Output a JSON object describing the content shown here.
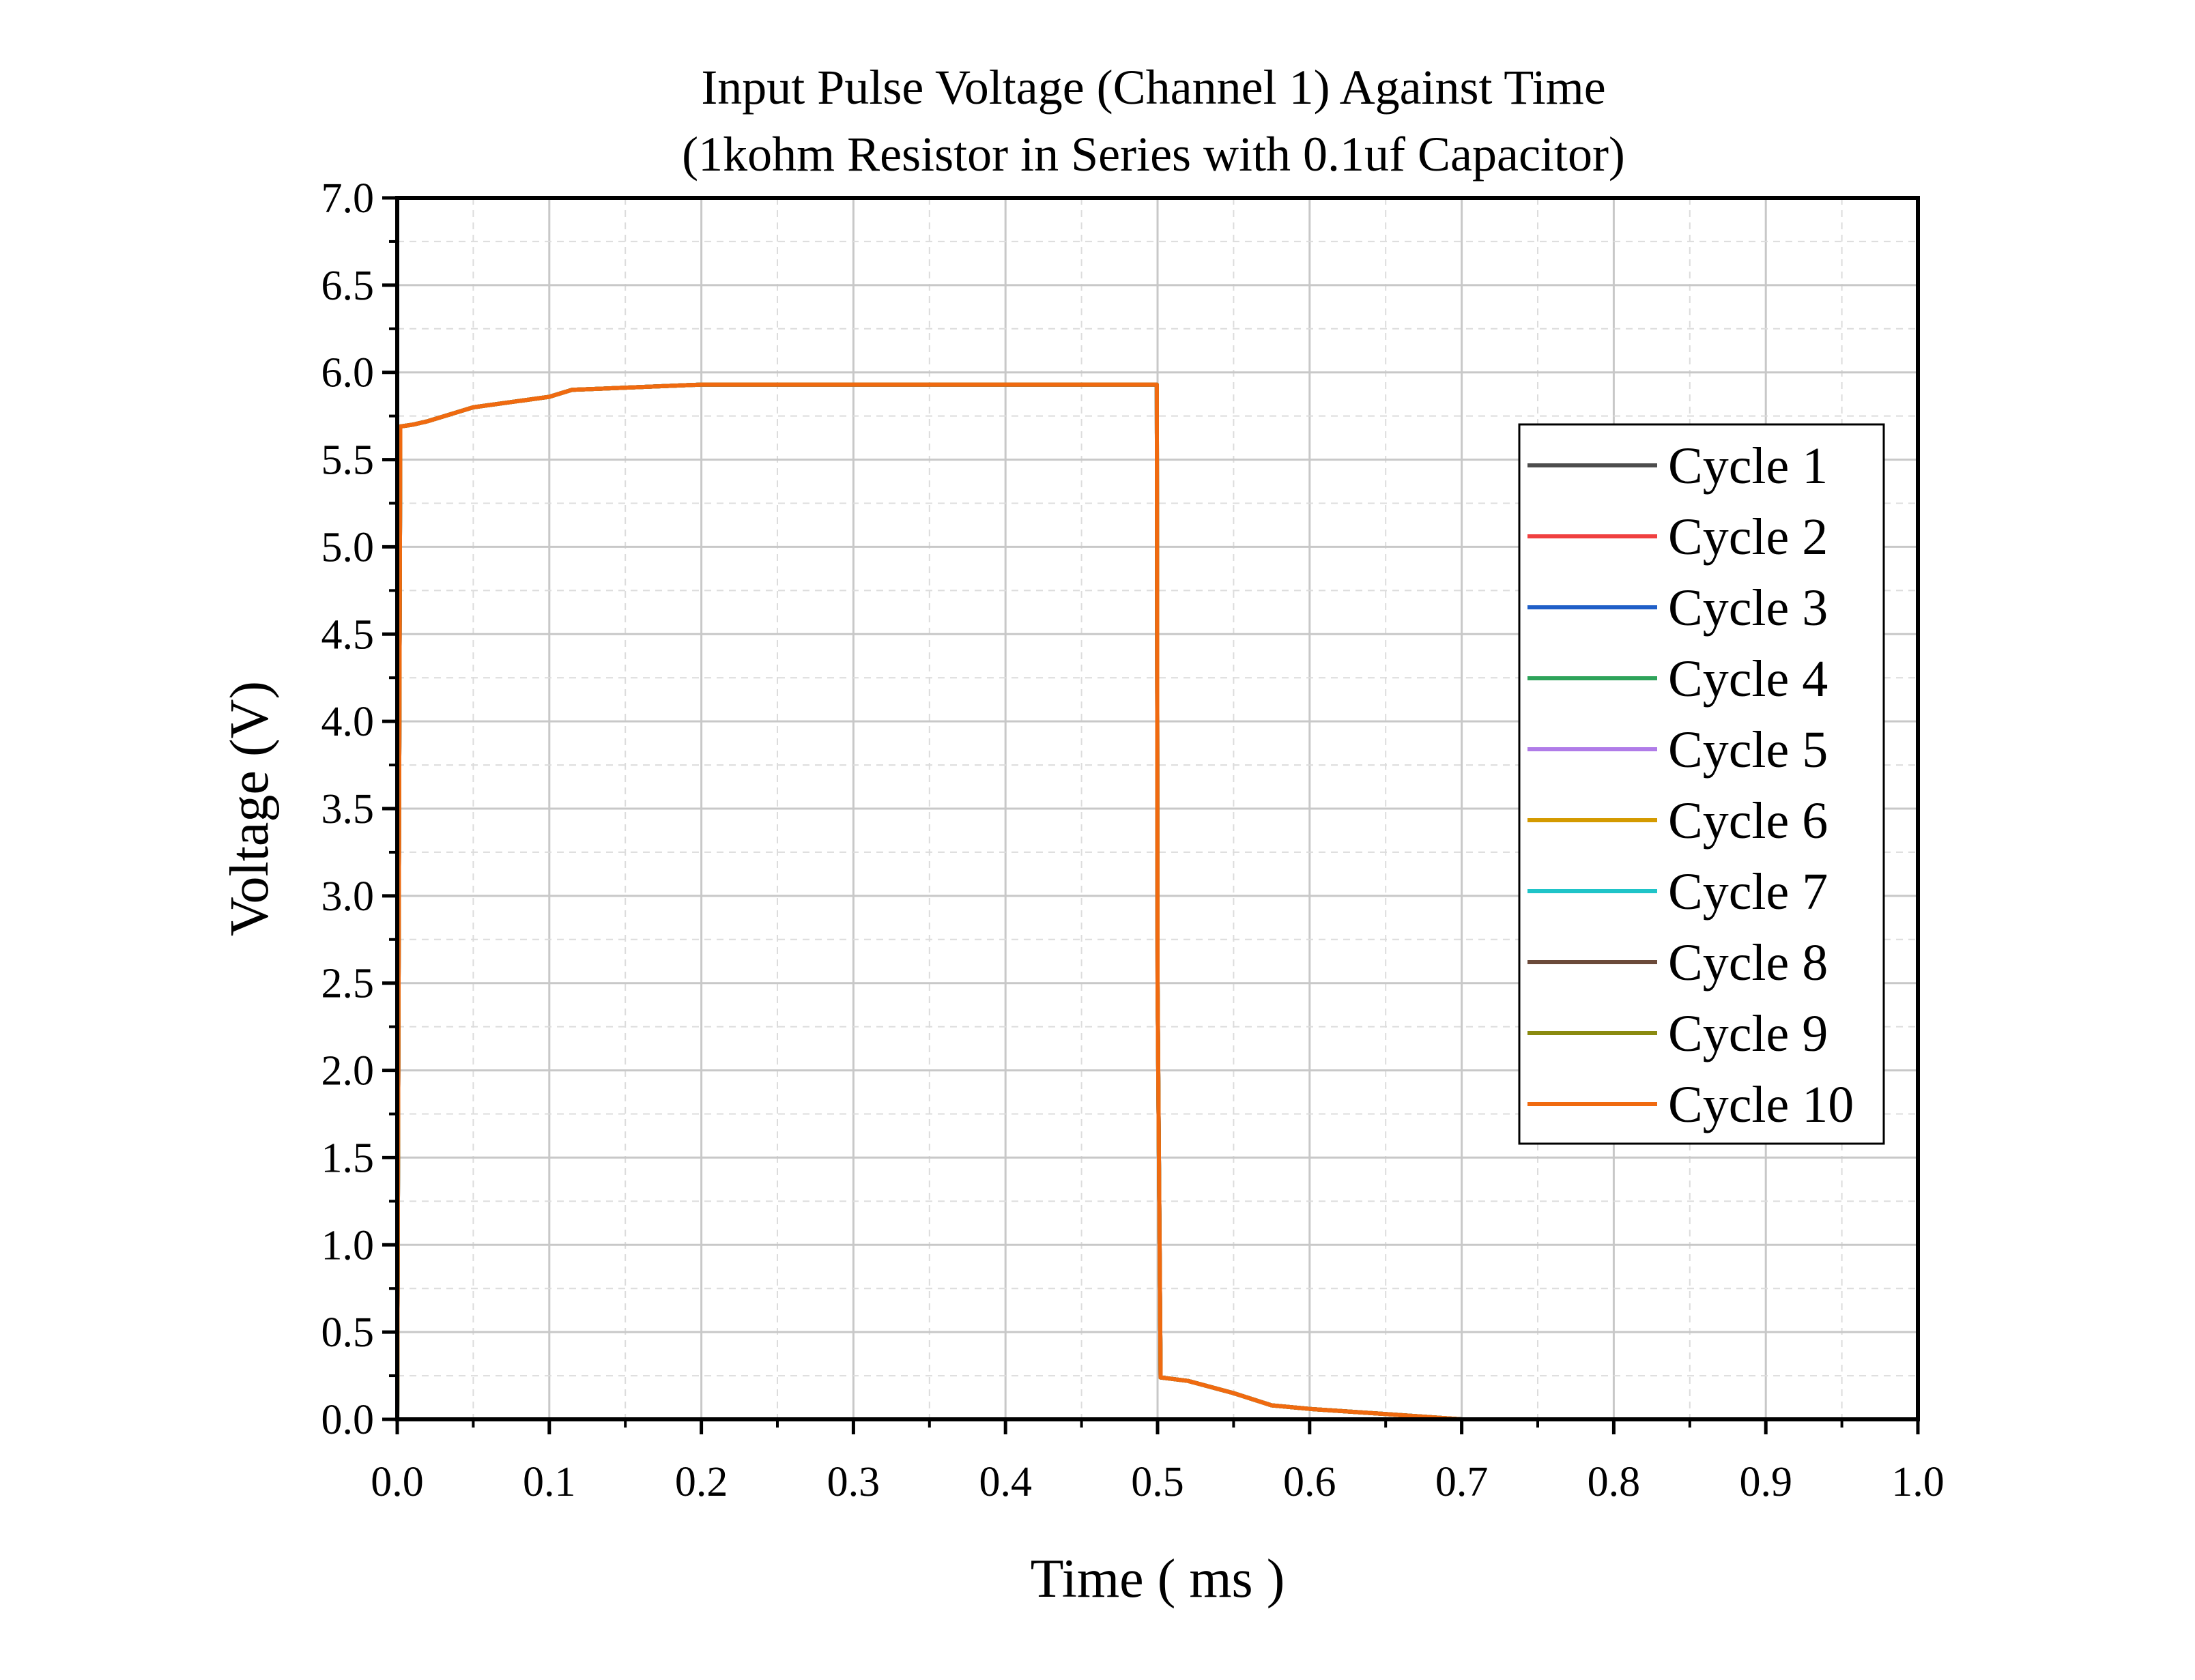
{
  "chart_data": {
    "type": "line",
    "title": "Input Pulse Voltage (Channel 1) Against Time",
    "subtitle": "(1kohm Resistor in Series with 0.1uf Capacitor)",
    "xlabel": "Time ( ms )",
    "ylabel": "Voltage (V)",
    "xlim": [
      0.0,
      1.0
    ],
    "ylim": [
      0.0,
      7.0
    ],
    "x_ticks": [
      "0.0",
      "0.1",
      "0.2",
      "0.3",
      "0.4",
      "0.5",
      "0.6",
      "0.7",
      "0.8",
      "0.9",
      "1.0"
    ],
    "y_ticks": [
      "0.0",
      "0.5",
      "1.0",
      "1.5",
      "2.0",
      "2.5",
      "3.0",
      "3.5",
      "4.0",
      "4.5",
      "5.0",
      "5.5",
      "6.0",
      "6.5",
      "7.0"
    ],
    "grid": true,
    "legend_position": "right",
    "x": [
      0.0,
      0.002,
      0.01,
      0.02,
      0.05,
      0.1,
      0.115,
      0.2,
      0.3,
      0.4,
      0.4995,
      0.5,
      0.502,
      0.52,
      0.55,
      0.575,
      0.6,
      0.65,
      0.7,
      0.8,
      0.9,
      1.0
    ],
    "series": [
      {
        "name": "Cycle 1",
        "color": "#4d4d4d",
        "values": [
          0.0,
          5.69,
          5.7,
          5.72,
          5.8,
          5.86,
          5.9,
          5.93,
          5.93,
          5.93,
          5.93,
          2.5,
          0.24,
          0.22,
          0.15,
          0.08,
          0.06,
          0.03,
          0.0,
          0.0,
          0.0,
          0.0
        ]
      },
      {
        "name": "Cycle 2",
        "color": "#f04040",
        "values": [
          0.0,
          5.69,
          5.7,
          5.72,
          5.8,
          5.86,
          5.9,
          5.93,
          5.93,
          5.93,
          5.93,
          2.5,
          0.24,
          0.22,
          0.15,
          0.08,
          0.06,
          0.03,
          0.0,
          0.0,
          0.0,
          0.0
        ]
      },
      {
        "name": "Cycle 3",
        "color": "#1f5fc8",
        "values": [
          0.0,
          5.69,
          5.7,
          5.72,
          5.8,
          5.86,
          5.9,
          5.93,
          5.93,
          5.93,
          5.93,
          2.5,
          0.24,
          0.22,
          0.15,
          0.08,
          0.06,
          0.03,
          0.0,
          0.0,
          0.0,
          0.0
        ]
      },
      {
        "name": "Cycle 4",
        "color": "#2ea35a",
        "values": [
          0.0,
          5.69,
          5.7,
          5.72,
          5.8,
          5.86,
          5.9,
          5.93,
          5.93,
          5.93,
          5.93,
          2.5,
          0.24,
          0.22,
          0.15,
          0.08,
          0.06,
          0.03,
          0.0,
          0.0,
          0.0,
          0.0
        ]
      },
      {
        "name": "Cycle 5",
        "color": "#b07ce8",
        "values": [
          0.0,
          5.69,
          5.7,
          5.72,
          5.8,
          5.86,
          5.9,
          5.93,
          5.93,
          5.93,
          5.93,
          2.5,
          0.24,
          0.22,
          0.15,
          0.08,
          0.06,
          0.03,
          0.0,
          0.0,
          0.0,
          0.0
        ]
      },
      {
        "name": "Cycle 6",
        "color": "#d49a00",
        "values": [
          0.0,
          5.69,
          5.7,
          5.72,
          5.8,
          5.86,
          5.9,
          5.93,
          5.93,
          5.93,
          5.93,
          2.5,
          0.24,
          0.22,
          0.15,
          0.08,
          0.06,
          0.03,
          0.0,
          0.0,
          0.0,
          0.0
        ]
      },
      {
        "name": "Cycle 7",
        "color": "#1fc4c8",
        "values": [
          0.0,
          5.69,
          5.7,
          5.72,
          5.8,
          5.86,
          5.9,
          5.93,
          5.93,
          5.93,
          5.93,
          2.5,
          0.24,
          0.22,
          0.15,
          0.08,
          0.06,
          0.03,
          0.0,
          0.0,
          0.0,
          0.0
        ]
      },
      {
        "name": "Cycle 8",
        "color": "#6b4a3a",
        "values": [
          0.0,
          5.69,
          5.7,
          5.72,
          5.8,
          5.86,
          5.9,
          5.93,
          5.93,
          5.93,
          5.93,
          2.5,
          0.24,
          0.22,
          0.15,
          0.08,
          0.06,
          0.03,
          0.0,
          0.0,
          0.0,
          0.0
        ]
      },
      {
        "name": "Cycle 9",
        "color": "#8a8a10",
        "values": [
          0.0,
          5.69,
          5.7,
          5.72,
          5.8,
          5.86,
          5.9,
          5.93,
          5.93,
          5.93,
          5.93,
          2.5,
          0.24,
          0.22,
          0.15,
          0.08,
          0.06,
          0.03,
          0.0,
          0.0,
          0.0,
          0.0
        ]
      },
      {
        "name": "Cycle 10",
        "color": "#f06a10",
        "values": [
          0.0,
          5.69,
          5.7,
          5.72,
          5.8,
          5.86,
          5.9,
          5.93,
          5.93,
          5.93,
          5.93,
          2.5,
          0.24,
          0.22,
          0.15,
          0.08,
          0.06,
          0.03,
          0.0,
          0.0,
          0.0,
          0.0
        ]
      }
    ]
  }
}
